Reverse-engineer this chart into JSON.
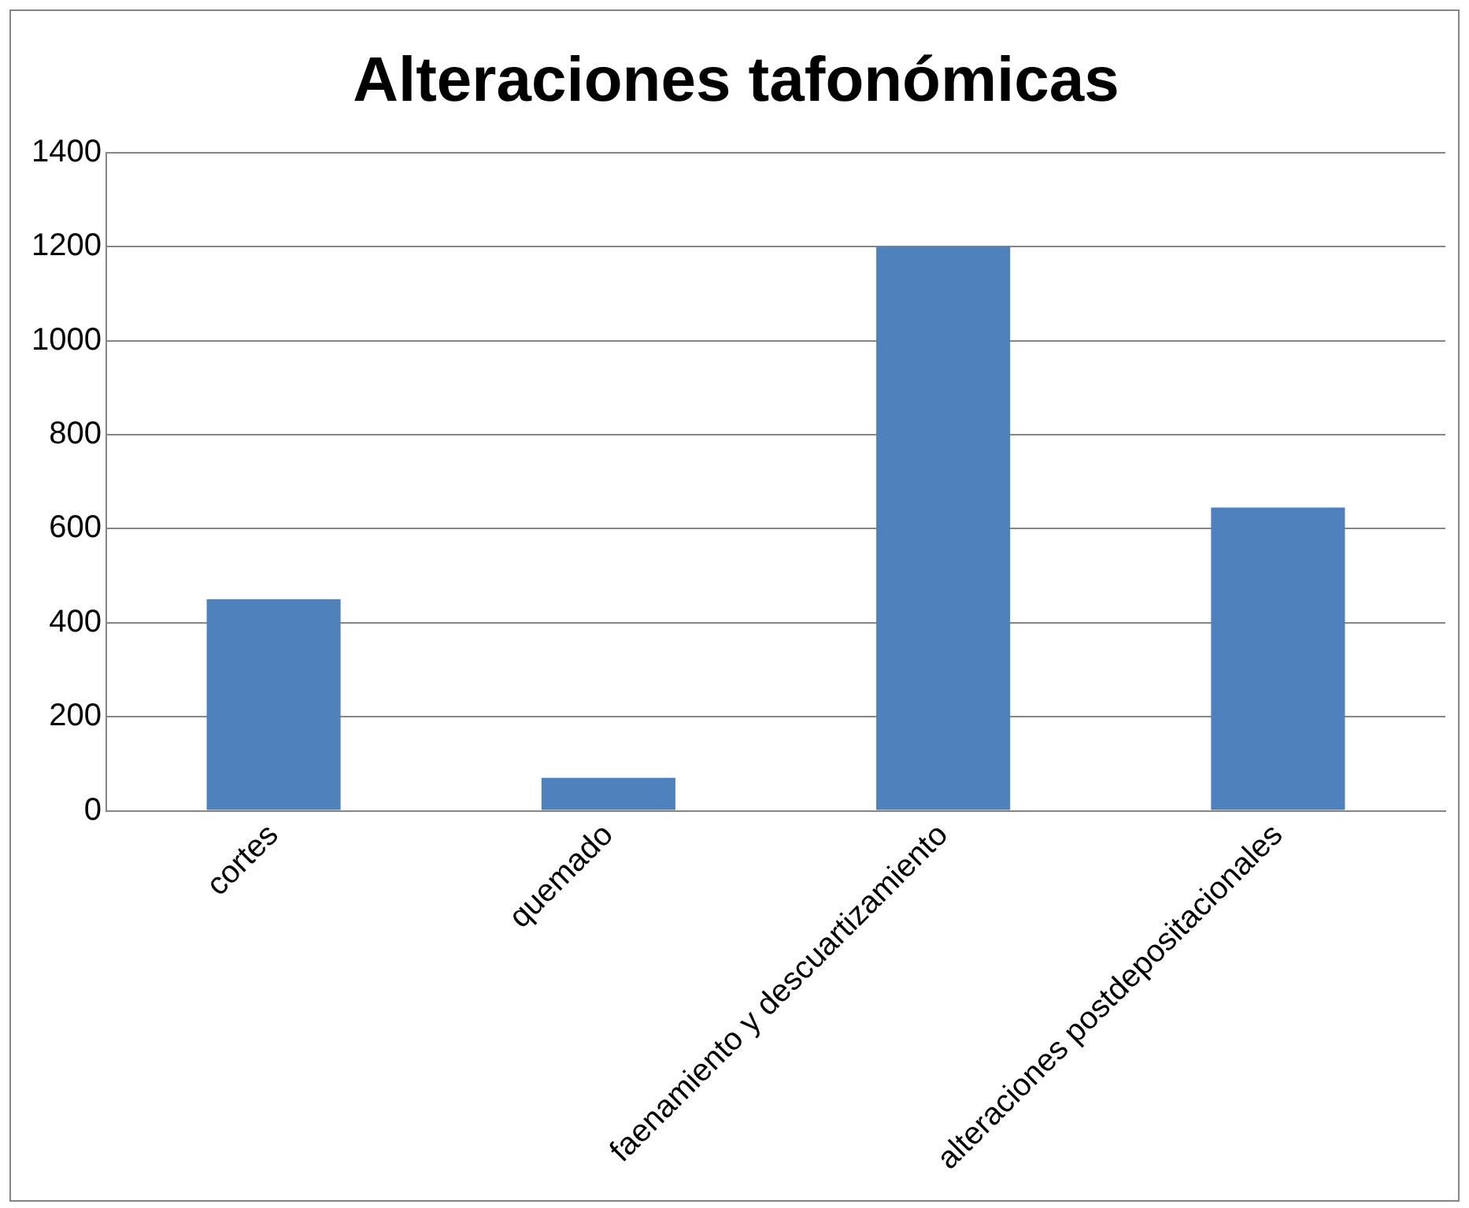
{
  "chart_data": {
    "type": "bar",
    "title": "Alteraciones tafonómicas",
    "categories": [
      "cortes",
      "quemado",
      "faenamiento y descuartizamiento",
      "alteraciones postdepositacionales"
    ],
    "values": [
      450,
      70,
      1200,
      645
    ],
    "color": "#4f81bd",
    "ylim": [
      0,
      1400
    ],
    "yticks": [
      0,
      200,
      400,
      600,
      800,
      1000,
      1200,
      1400
    ],
    "grid": "y"
  }
}
